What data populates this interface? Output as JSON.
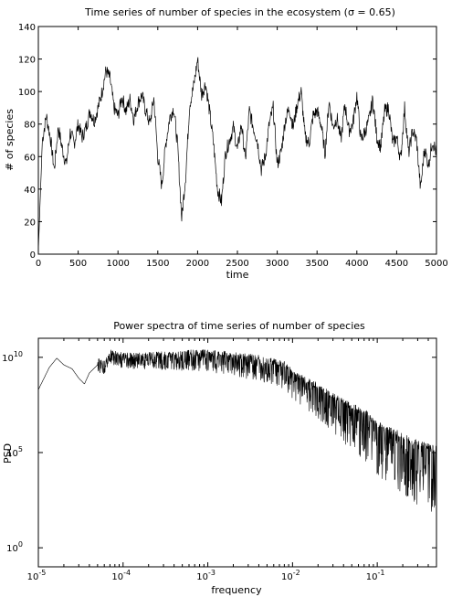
{
  "chart_data": [
    {
      "type": "line",
      "title": "Time series of number of species in the ecosystem (σ = 0.65)",
      "xlabel": "time",
      "ylabel": "# of species",
      "xlim": [
        0,
        5000
      ],
      "ylim": [
        0,
        140
      ],
      "xticks": [
        "0",
        "500",
        "1000",
        "1500",
        "2000",
        "2500",
        "3000",
        "3500",
        "4000",
        "4500",
        "5000"
      ],
      "yticks": [
        "0",
        "20",
        "40",
        "60",
        "80",
        "100",
        "120",
        "140"
      ],
      "grid": false,
      "series": [
        {
          "x": [
            0,
            50,
            100,
            150,
            200,
            250,
            300,
            350,
            400,
            450,
            500,
            550,
            600,
            650,
            700,
            750,
            800,
            850,
            900,
            950,
            1000,
            1050,
            1100,
            1150,
            1200,
            1250,
            1300,
            1350,
            1400,
            1450,
            1500,
            1550,
            1600,
            1650,
            1700,
            1750,
            1800,
            1850,
            1900,
            1950,
            2000,
            2050,
            2100,
            2150,
            2200,
            2250,
            2300,
            2350,
            2400,
            2450,
            2500,
            2550,
            2600,
            2650,
            2700,
            2750,
            2800,
            2850,
            2900,
            2950,
            3000,
            3050,
            3100,
            3150,
            3200,
            3250,
            3300,
            3350,
            3400,
            3450,
            3500,
            3550,
            3600,
            3650,
            3700,
            3750,
            3800,
            3850,
            3900,
            3950,
            4000,
            4050,
            4100,
            4150,
            4200,
            4250,
            4300,
            4350,
            4400,
            4450,
            4500,
            4550,
            4600,
            4650,
            4700,
            4750,
            4800,
            4850,
            4900,
            4950,
            5000
          ],
          "y": [
            2,
            70,
            85,
            72,
            52,
            78,
            65,
            55,
            75,
            68,
            80,
            72,
            78,
            88,
            82,
            90,
            100,
            113,
            108,
            90,
            85,
            97,
            88,
            95,
            83,
            93,
            98,
            88,
            80,
            96,
            60,
            42,
            68,
            84,
            90,
            66,
            22,
            48,
            92,
            103,
            120,
            98,
            105,
            88,
            68,
            40,
            32,
            62,
            70,
            78,
            64,
            80,
            58,
            88,
            78,
            70,
            52,
            60,
            80,
            90,
            55,
            63,
            82,
            90,
            78,
            92,
            100,
            72,
            68,
            85,
            88,
            80,
            62,
            94,
            78,
            84,
            70,
            92,
            76,
            80,
            98,
            70,
            75,
            82,
            95,
            72,
            66,
            88,
            90,
            68,
            72,
            58,
            90,
            62,
            76,
            70,
            40,
            65,
            55,
            70,
            62
          ]
        }
      ]
    },
    {
      "type": "line",
      "title": "Power spectra of time series of number of species",
      "xlabel": "frequency",
      "ylabel": "PSD",
      "xscale": "log",
      "yscale": "log",
      "xlim": [
        1e-05,
        0.5
      ],
      "ylim": [
        0.1,
        100000000000.0
      ],
      "xticks_base": "10",
      "xticks_exp": [
        "-5",
        "-4",
        "-3",
        "-2",
        "-1"
      ],
      "yticks_base": "10",
      "yticks_exp": [
        "0",
        "5",
        "10"
      ],
      "grid": false,
      "series": [
        {
          "shape": "noisy power spectrum, ~1e10 plateau falling off above 1e-3",
          "x": [
            1e-05,
            1.35e-05,
            1.65e-05,
            2e-05,
            2.5e-05,
            3e-05,
            3.5e-05,
            4e-05,
            5e-05,
            6e-05,
            7e-05,
            0.0001,
            0.0002,
            0.0004,
            0.0008,
            0.001,
            0.002,
            0.004,
            0.008,
            0.01,
            0.02,
            0.04,
            0.08,
            0.1,
            0.2,
            0.3,
            0.5
          ],
          "y": [
            200000000.0,
            3000000000.0,
            9000000000.0,
            4000000000.0,
            2500000000.0,
            800000000.0,
            400000000.0,
            1500000000.0,
            4000000000.0,
            3000000000.0,
            12000000000.0,
            8000000000.0,
            9000000000.0,
            10000000000.0,
            12000000000.0,
            11000000000.0,
            9000000000.0,
            6000000000.0,
            3000000000.0,
            1000000000.0,
            200000000.0,
            30000000.0,
            6000000.0,
            2000000.0,
            500000.0,
            200000.0,
            100000.0
          ]
        }
      ]
    }
  ]
}
